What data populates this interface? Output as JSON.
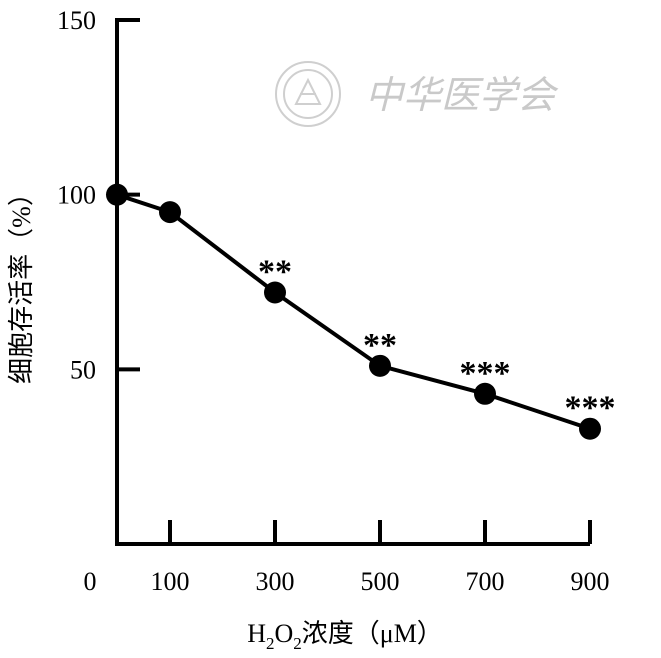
{
  "chart_data": {
    "type": "line",
    "x": [
      0,
      100,
      300,
      500,
      700,
      900
    ],
    "x_tick_labels": [
      "0",
      "100",
      "300",
      "500",
      "700",
      "900"
    ],
    "y": [
      100,
      95,
      72,
      51,
      43,
      33
    ],
    "significance": [
      "",
      "",
      "**",
      "**",
      "***",
      "***"
    ],
    "ylim": [
      0,
      150
    ],
    "y_ticks": [
      50,
      100,
      150
    ],
    "y_tick_labels": [
      "50",
      "100",
      "150"
    ],
    "xlabel": {
      "h": "H",
      "sub1": "2",
      "o": "O",
      "sub2": "2",
      "rest": "浓度（μM）"
    },
    "ylabel": "细胞存活率（%）",
    "grid": false,
    "legend": "none",
    "colors": {
      "line": "#000000",
      "marker": "#000000",
      "watermark": "#c9c9c9"
    }
  },
  "watermark": {
    "text": "中华医学会",
    "icon": "seal-emblem-icon"
  }
}
